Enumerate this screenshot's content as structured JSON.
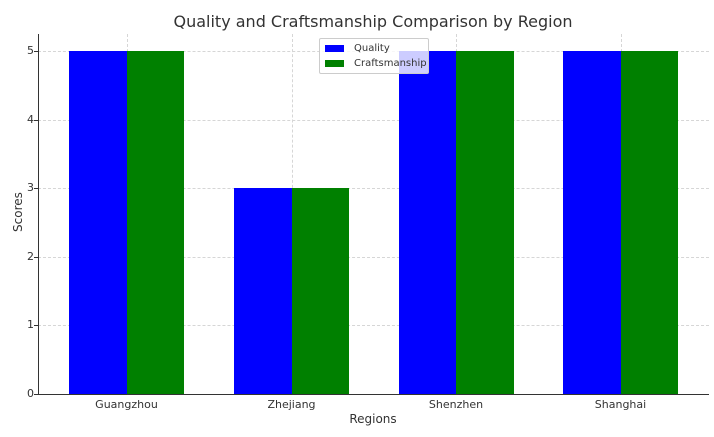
{
  "chart_data": {
    "type": "bar",
    "title": "Quality and Craftsmanship Comparison by Region",
    "xlabel": "Regions",
    "ylabel": "Scores",
    "categories": [
      "Guangzhou",
      "Zhejiang",
      "Shenzhen",
      "Shanghai"
    ],
    "series": [
      {
        "name": "Quality",
        "color": "#0000ff",
        "values": [
          5,
          3,
          5,
          5
        ]
      },
      {
        "name": "Craftsmanship",
        "color": "#008000",
        "values": [
          5,
          3,
          5,
          5
        ]
      }
    ],
    "ylim": [
      0,
      5.25
    ],
    "yticks": [
      "0",
      "1",
      "2",
      "3",
      "4",
      "5"
    ],
    "grid": true,
    "legend_position": "upper center"
  }
}
